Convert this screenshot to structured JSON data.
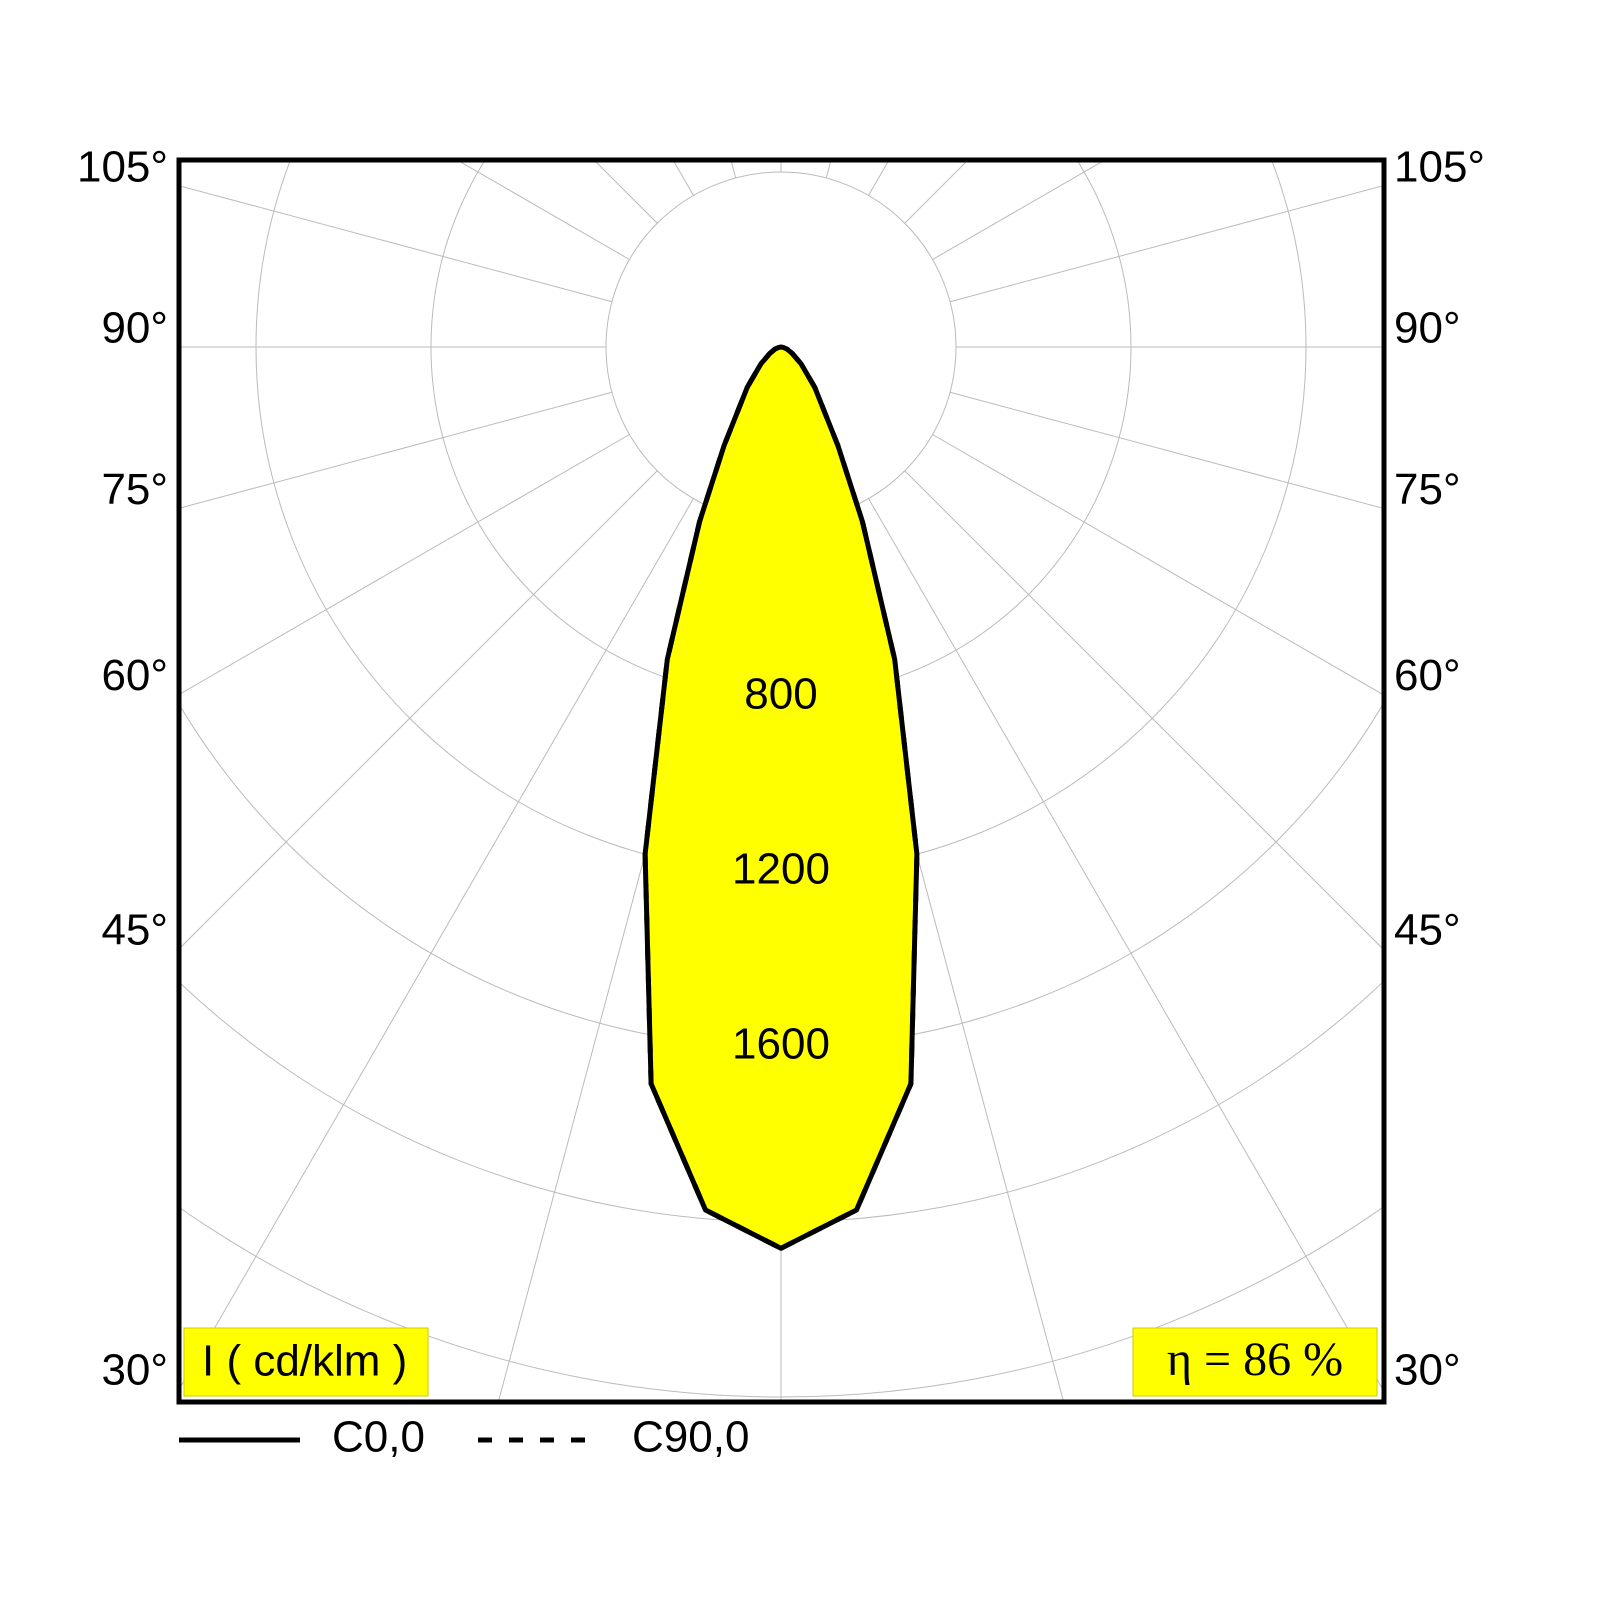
{
  "chart_data": {
    "type": "polar",
    "unit_label": "I ( cd/klm )",
    "efficiency_label": "η = 86 %",
    "angles": [
      0,
      5,
      10,
      15,
      20,
      25,
      30,
      40,
      50,
      60,
      70,
      80,
      90
    ],
    "series": [
      {
        "name": "C0,0",
        "color": "#000000",
        "values": [
          2060,
          1980,
          1710,
          1200,
          760,
          440,
          260,
          120,
          60,
          30,
          15,
          5,
          0
        ]
      },
      {
        "name": "C90,0",
        "color": "#000000",
        "values": [
          2060,
          1980,
          1710,
          1200,
          760,
          440,
          260,
          120,
          60,
          30,
          15,
          5,
          0
        ]
      }
    ],
    "fill": "#ffff00",
    "rgrid": [
      400,
      800,
      1200,
      1600,
      2000,
      2400,
      2800
    ],
    "rticks": [
      800,
      1200,
      1600
    ],
    "angle_grid": [
      0,
      15,
      30,
      45,
      60,
      75,
      90,
      105,
      120,
      135,
      150,
      165,
      180
    ],
    "angle_ticks": [
      {
        "value": 105,
        "label": "105°"
      },
      {
        "value": 90,
        "label": "90°"
      },
      {
        "value": 75,
        "label": "75°"
      },
      {
        "value": 60,
        "label": "60°"
      },
      {
        "value": 45,
        "label": "45°"
      },
      {
        "value": 30,
        "label": "30°"
      }
    ]
  }
}
